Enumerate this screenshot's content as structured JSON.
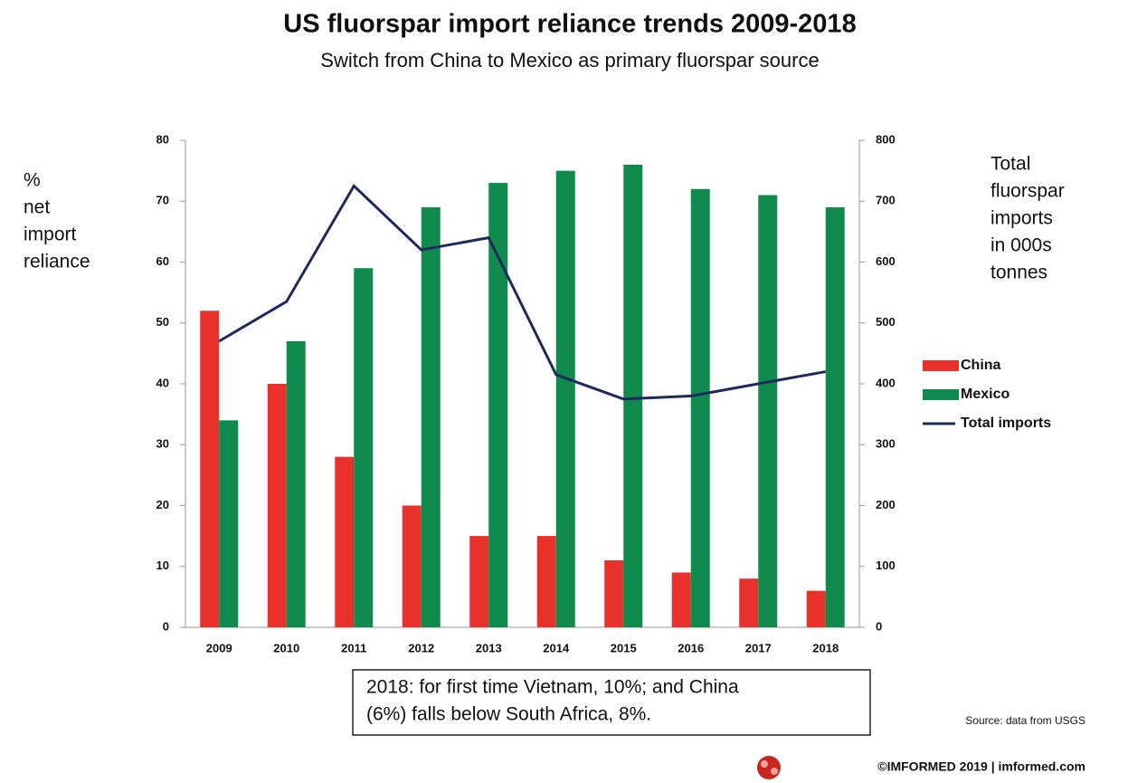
{
  "chart_data": {
    "type": "bar",
    "title": "US fluorspar import reliance trends 2009-2018",
    "subtitle": "Switch from China to Mexico as primary fluorspar source",
    "y_label": [
      "%",
      "net",
      "import",
      "reliance"
    ],
    "y2_label": [
      "Total",
      "fluorspar",
      "imports",
      "in 000s",
      "tonnes"
    ],
    "categories": [
      "2009",
      "2010",
      "2011",
      "2012",
      "2013",
      "2014",
      "2015",
      "2016",
      "2017",
      "2018"
    ],
    "series": [
      {
        "name": "China",
        "color": "#e8312b",
        "values": [
          52,
          40,
          28,
          20,
          15,
          15,
          11,
          9,
          8,
          6
        ]
      },
      {
        "name": "Mexico",
        "color": "#118a4d",
        "values": [
          34,
          47,
          59,
          69,
          73,
          75,
          76,
          72,
          71,
          69
        ]
      },
      {
        "name": "Total imports",
        "color": "#1f2a5c",
        "type": "line",
        "axis": "y2",
        "values": [
          470,
          535,
          725,
          620,
          640,
          415,
          375,
          380,
          400,
          420
        ]
      }
    ],
    "ylim": [
      0,
      80
    ],
    "yticks": [
      0,
      10,
      20,
      30,
      40,
      50,
      60,
      70,
      80
    ],
    "y2lim": [
      0,
      800
    ],
    "y2ticks": [
      0,
      100,
      200,
      300,
      400,
      500,
      600,
      700,
      800
    ],
    "annotation": [
      "2018: for first time Vietnam, 10%; and China",
      "(6%)  falls below South Africa, 8%."
    ],
    "source": "Source: data from USGS",
    "footer": "©IMFORMED 2019  | imformed.com"
  }
}
